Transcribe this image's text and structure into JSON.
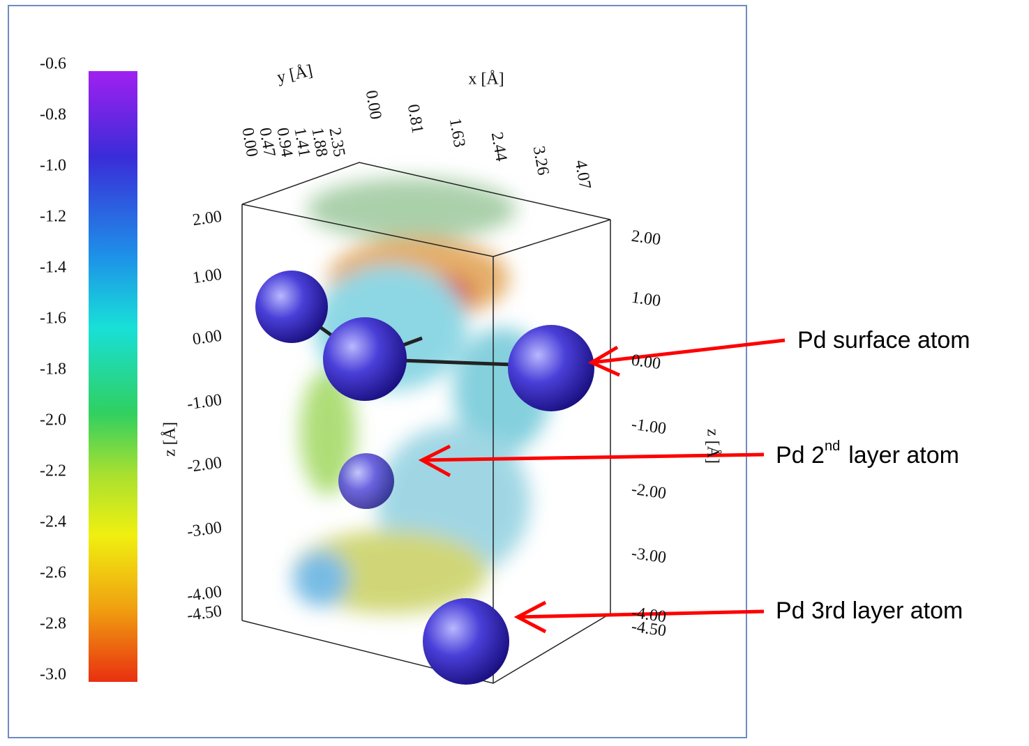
{
  "colorbar": {
    "labels": [
      "-0.6",
      "-0.8",
      "-1.0",
      "-1.2",
      "-1.4",
      "-1.6",
      "-1.8",
      "-2.0",
      "-2.2",
      "-2.4",
      "-2.6",
      "-2.8",
      "-3.0"
    ]
  },
  "axes": {
    "y_title": "y [Å]",
    "x_title": "x [Å]",
    "z_title_left": "z [Å]",
    "z_title_right": "z [Å]",
    "y_ticks": [
      "0.00",
      "0.47",
      "0.94",
      "1.41",
      "1.88",
      "2.35"
    ],
    "x_ticks": [
      "0.00",
      "0.81",
      "1.63",
      "2.44",
      "3.26",
      "4.07"
    ],
    "z_ticks_left": [
      "2.00",
      "1.00",
      "0.00",
      "-1.00",
      "-2.00",
      "-3.00",
      "-4.00",
      "-4.50"
    ],
    "z_ticks_right": [
      "2.00",
      "1.00",
      "0.00",
      "-1.00",
      "-2.00",
      "-3.00",
      "-4.00",
      "-4.50"
    ]
  },
  "annotations": {
    "surface": "Pd surface atom",
    "second": {
      "prefix": "Pd 2",
      "sup": "nd",
      "suffix": "layer atom"
    },
    "third": "Pd 3rd  layer atom"
  }
}
